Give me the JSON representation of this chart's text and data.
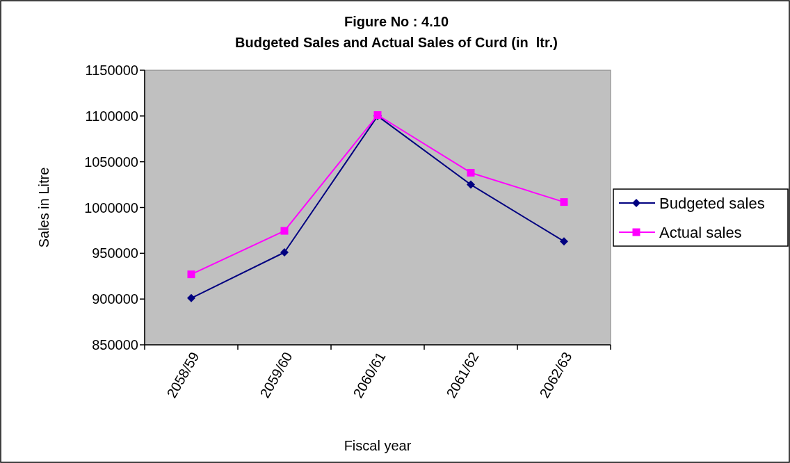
{
  "chart_data": {
    "type": "line",
    "title": "Figure No : 4.10\nBudgeted Sales and Actual Sales of Curd (in  ltr.)",
    "xlabel": "Fiscal year",
    "ylabel": "Sales in Litre",
    "categories": [
      "2058/59",
      "2059/60",
      "2060/61",
      "2061/62",
      "2062/63"
    ],
    "series": [
      {
        "name": "Budgeted sales",
        "color": "#000080",
        "marker": "diamond",
        "values": [
          901000,
          951000,
          1100000,
          1025000,
          963000
        ]
      },
      {
        "name": "Actual sales",
        "color": "#ff00ff",
        "marker": "square",
        "values": [
          927000,
          974500,
          1101000,
          1038000,
          1006000
        ]
      }
    ],
    "ylim": [
      850000,
      1150000
    ],
    "yticks": [
      850000,
      900000,
      950000,
      1000000,
      1050000,
      1100000,
      1150000
    ],
    "legend": "right",
    "grid": false
  }
}
